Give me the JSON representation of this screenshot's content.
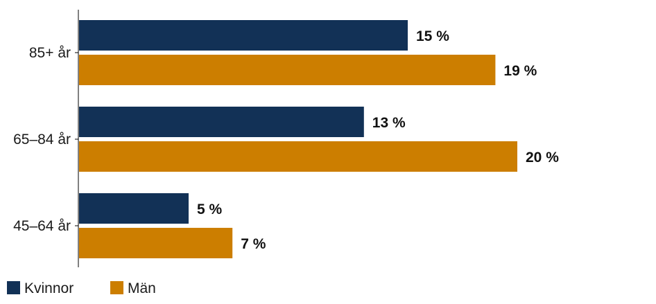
{
  "chart_data": {
    "type": "bar",
    "orientation": "horizontal",
    "categories": [
      "85+ år",
      "65–84 år",
      "45–64 år"
    ],
    "series": [
      {
        "name": "Kvinnor",
        "color": "#123156",
        "values": [
          15,
          13,
          5
        ],
        "labels": [
          "15 %",
          "13 %",
          "5 %"
        ]
      },
      {
        "name": "Män",
        "color": "#cc7e00",
        "values": [
          19,
          20,
          7
        ],
        "labels": [
          "19 %",
          "20 %",
          "7 %"
        ]
      }
    ],
    "xlim": [
      0,
      20
    ],
    "grid": false,
    "legend": "bottom-left",
    "unit": "%"
  }
}
